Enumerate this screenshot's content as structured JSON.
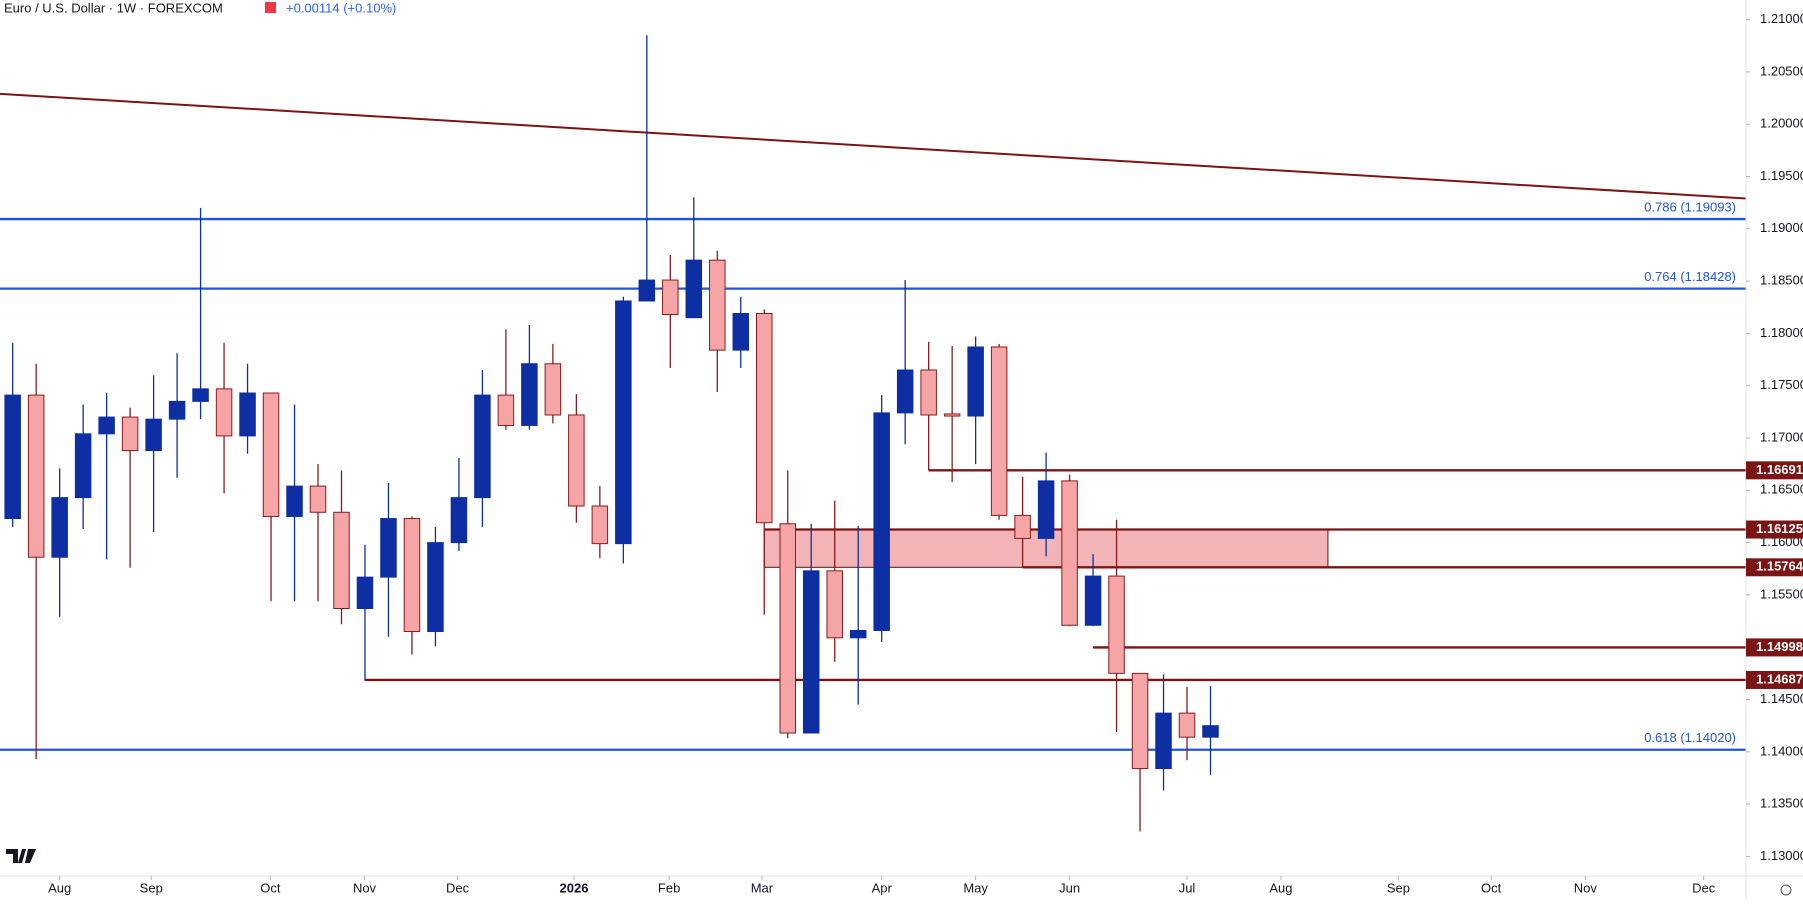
{
  "chart_data": {
    "type": "candlestick",
    "title": "Euro / U.S. Dollar · 1W · FOREXCOM",
    "change": "+0.00114 (+0.10%)",
    "up_color": "#0d2fa3",
    "down_color": "#f5a5a6",
    "down_edge_color": "#8b1a1a",
    "open": [
      1.1623,
      1.1741,
      1.1586,
      1.1643,
      1.1704,
      1.172,
      1.1688,
      1.1718,
      1.1735,
      1.1747,
      1.1702,
      1.1743,
      1.1625,
      1.1654,
      1.1629,
      1.1537,
      1.1567,
      1.1623,
      1.1515,
      1.16,
      1.1643,
      1.1741,
      1.1712,
      1.1771,
      1.1722,
      1.1635,
      1.1599,
      1.1831,
      1.1851,
      1.1815,
      1.187,
      1.1784,
      1.1819,
      1.1618,
      1.1418,
      1.1573,
      1.1509,
      1.1516,
      1.1724,
      1.1765,
      1.1723,
      1.1721,
      1.1787,
      1.1626,
      1.1604,
      1.1659,
      1.1521,
      1.1568,
      1.1475,
      1.1384,
      1.1437,
      1.1414
    ],
    "high": [
      1.1791,
      1.1771,
      1.1671,
      1.1732,
      1.1743,
      1.1729,
      1.176,
      1.1781,
      1.192,
      1.1791,
      1.1771,
      1.1743,
      1.1732,
      1.1675,
      1.1669,
      1.1598,
      1.1657,
      1.1625,
      1.1615,
      1.1681,
      1.1765,
      1.1804,
      1.1808,
      1.179,
      1.1742,
      1.1654,
      1.1835,
      1.2085,
      1.1875,
      1.193,
      1.1879,
      1.1835,
      1.1823,
      1.1669,
      1.1618,
      1.164,
      1.1616,
      1.1741,
      1.1851,
      1.1792,
      1.1788,
      1.1797,
      1.179,
      1.1663,
      1.1686,
      1.1665,
      1.1589,
      1.1622,
      1.1475,
      1.1474,
      1.1462,
      1.1463
    ],
    "low": [
      1.1615,
      1.1393,
      1.1529,
      1.1613,
      1.1584,
      1.1576,
      1.161,
      1.1662,
      1.1718,
      1.1647,
      1.1685,
      1.1544,
      1.1544,
      1.1544,
      1.1522,
      1.1468,
      1.151,
      1.1493,
      1.1501,
      1.1592,
      1.1615,
      1.1708,
      1.1708,
      1.1714,
      1.1619,
      1.1585,
      1.158,
      1.1831,
      1.1767,
      1.1815,
      1.1744,
      1.1767,
      1.1531,
      1.1413,
      1.1418,
      1.1486,
      1.1445,
      1.1505,
      1.1694,
      1.1669,
      1.1658,
      1.1675,
      1.1622,
      1.1576,
      1.1587,
      1.152,
      1.152,
      1.1419,
      1.1324,
      1.1363,
      1.1392,
      1.1378
    ],
    "close": [
      1.1741,
      1.1586,
      1.1643,
      1.1704,
      1.172,
      1.1688,
      1.1718,
      1.1735,
      1.1747,
      1.1702,
      1.1743,
      1.1625,
      1.1654,
      1.1629,
      1.1537,
      1.1567,
      1.1623,
      1.1515,
      1.16,
      1.1643,
      1.1741,
      1.1712,
      1.1771,
      1.1722,
      1.1635,
      1.1599,
      1.1831,
      1.1851,
      1.1818,
      1.187,
      1.1784,
      1.1819,
      1.1619,
      1.1418,
      1.1573,
      1.1509,
      1.1516,
      1.1724,
      1.1765,
      1.1722,
      1.1721,
      1.1787,
      1.1626,
      1.1604,
      1.1659,
      1.1521,
      1.1568,
      1.1475,
      1.1384,
      1.1437,
      1.1414,
      1.1425
    ],
    "xlim": [
      -0.54,
      73.8
    ],
    "xticks": [
      {
        "value": 2.0,
        "label": "Aug"
      },
      {
        "value": 5.9,
        "label": "Sep"
      },
      {
        "value": 10.97,
        "label": "Oct"
      },
      {
        "value": 14.98,
        "label": "Nov"
      },
      {
        "value": 18.94,
        "label": "Dec"
      },
      {
        "value": 23.9,
        "label": "2026"
      },
      {
        "value": 27.95,
        "label": "Feb"
      },
      {
        "value": 31.9,
        "label": "Mar"
      },
      {
        "value": 37.0,
        "label": "Apr"
      },
      {
        "value": 41.0,
        "label": "May"
      },
      {
        "value": 45.0,
        "label": "Jun"
      },
      {
        "value": 50.0,
        "label": "Jul"
      },
      {
        "value": 54.0,
        "label": "Aug"
      },
      {
        "value": 59.0,
        "label": "Sep"
      },
      {
        "value": 62.95,
        "label": "Oct"
      },
      {
        "value": 66.96,
        "label": "Nov"
      },
      {
        "value": 72.0,
        "label": "Dec"
      }
    ],
    "ylim": [
      1.12813,
      1.21187
    ],
    "yticks": [
      {
        "value": 1.13,
        "label": "1.13000"
      },
      {
        "value": 1.135,
        "label": "1.13500"
      },
      {
        "value": 1.14,
        "label": "1.14000"
      },
      {
        "value": 1.145,
        "label": "1.14500"
      },
      {
        "value": 1.15,
        "label": "1.15000"
      },
      {
        "value": 1.155,
        "label": "1.15500"
      },
      {
        "value": 1.16,
        "label": "1.16000"
      },
      {
        "value": 1.165,
        "label": "1.16500"
      },
      {
        "value": 1.17,
        "label": "1.17000"
      },
      {
        "value": 1.175,
        "label": "1.17500"
      },
      {
        "value": 1.18,
        "label": "1.18000"
      },
      {
        "value": 1.185,
        "label": "1.18500"
      },
      {
        "value": 1.19,
        "label": "1.19000"
      },
      {
        "value": 1.195,
        "label": "1.19500"
      },
      {
        "value": 1.2,
        "label": "1.20000"
      },
      {
        "value": 1.205,
        "label": "1.20500"
      },
      {
        "value": 1.21,
        "label": "1.21000"
      }
    ],
    "fib_levels": [
      {
        "value": 1.19093,
        "label": "0.786 (1.19093)"
      },
      {
        "value": 1.18428,
        "label": "0.764 (1.18428)"
      },
      {
        "value": 1.1402,
        "label": "0.618 (1.14020)"
      }
    ],
    "fib_color": "#1f55e0",
    "levels": [
      {
        "value": 1.16691,
        "start": 39
      },
      {
        "value": 1.16125,
        "start": 32
      },
      {
        "value": 1.15764,
        "start": 43
      },
      {
        "value": 1.14998,
        "start": 46
      },
      {
        "value": 1.14687,
        "start": 15
      }
    ],
    "level_color": "#7b1414",
    "zone": {
      "top": 1.16125,
      "bottom": 1.15764,
      "start": 32,
      "end": 56
    },
    "trendline": {
      "x": [
        -0.54,
        73.8
      ],
      "y": [
        1.2029,
        1.1929
      ]
    }
  }
}
